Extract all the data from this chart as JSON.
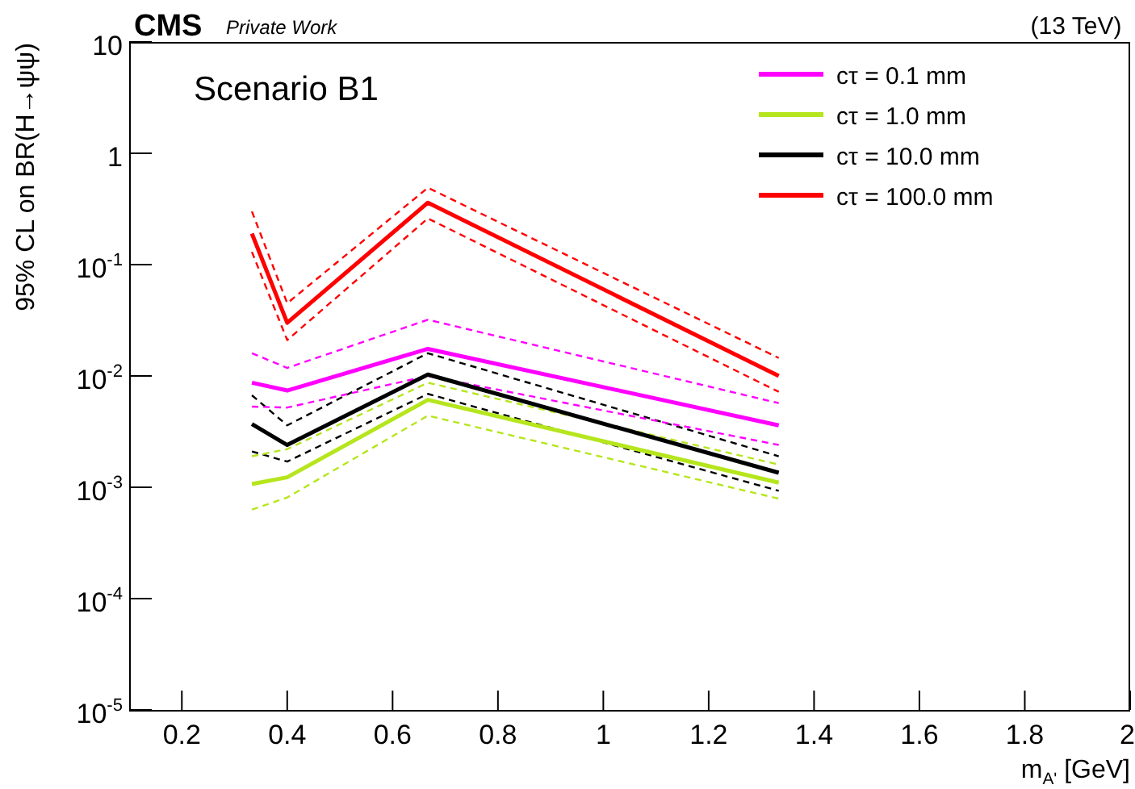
{
  "chart_data": {
    "type": "line",
    "title": "Scenario B1",
    "xlabel": "m$_{A'}$ [GeV]",
    "ylabel": "95% CL on BR(H→ψψ)",
    "annotations": [
      "CMS",
      "Private Work",
      "(13 TeV)"
    ],
    "x": [
      0.333,
      0.4,
      0.667,
      1.333
    ],
    "series": [
      {
        "name": "cτ = 0.1 mm",
        "color": "#ff00ff",
        "values": [
          0.0087,
          0.0074,
          0.0175,
          0.0036
        ]
      },
      {
        "name": "cτ = 1.0 mm",
        "color": "#b5e61d",
        "values": [
          0.00107,
          0.00123,
          0.0061,
          0.0011
        ]
      },
      {
        "name": "cτ = 10.0 mm",
        "color": "#000000",
        "values": [
          0.0037,
          0.0024,
          0.0103,
          0.00135
        ]
      },
      {
        "name": "cτ = 100.0 mm",
        "color": "#ff0000",
        "values": [
          0.19,
          0.03,
          0.36,
          0.01
        ]
      },
      {
        "color": "#ff00ff",
        "line_style": "dashed",
        "values": [
          0.0053,
          0.0052,
          0.01,
          0.0024
        ]
      },
      {
        "color": "#ff00ff",
        "line_style": "dashed",
        "values": [
          0.016,
          0.0118,
          0.032,
          0.0057
        ]
      },
      {
        "color": "#b5e61d",
        "line_style": "dashed",
        "values": [
          0.00063,
          0.00081,
          0.0044,
          0.00079
        ]
      },
      {
        "color": "#b5e61d",
        "line_style": "dashed",
        "values": [
          0.0019,
          0.0022,
          0.0087,
          0.0016
        ]
      },
      {
        "color": "#000000",
        "line_style": "dashed",
        "values": [
          0.0021,
          0.0017,
          0.0069,
          0.00093
        ]
      },
      {
        "color": "#000000",
        "line_style": "dashed",
        "values": [
          0.0067,
          0.0036,
          0.016,
          0.0019
        ]
      },
      {
        "color": "#ff0000",
        "line_style": "dashed",
        "values": [
          0.13,
          0.021,
          0.26,
          0.0072
        ]
      },
      {
        "color": "#ff0000",
        "line_style": "dashed",
        "values": [
          0.3,
          0.045,
          0.49,
          0.0145
        ]
      }
    ],
    "xlim": [
      0.1,
      2
    ],
    "xticks": [
      0.2,
      0.4,
      0.6,
      0.8,
      1,
      1.2,
      1.4,
      1.6,
      1.8,
      2
    ],
    "ylim": [
      1e-05,
      10
    ],
    "yticks": [
      {
        "value": 1e-05,
        "label": "10$^{-5}$"
      },
      {
        "value": 0.0001,
        "label": "10$^{-4}$"
      },
      {
        "value": 0.001,
        "label": "10$^{-3}$"
      },
      {
        "value": 0.01,
        "label": "10$^{-2}$"
      },
      {
        "value": 0.1,
        "label": "10$^{-1}$"
      },
      1,
      10
    ],
    "log": true,
    "grid": false,
    "legend": "top right",
    "marker": "none",
    "line_style": "solid"
  }
}
